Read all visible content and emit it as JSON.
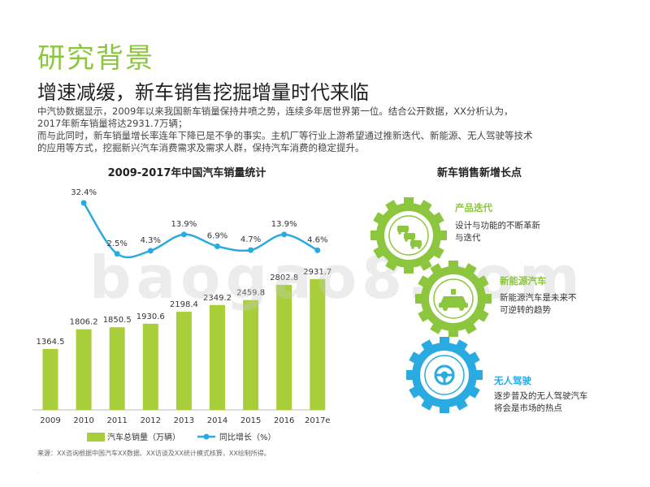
{
  "page": {
    "title": "研究背景",
    "subtitle": "增速减缓，新车销售挖掘增量时代来临",
    "intro_lines": [
      "中汽协数据显示，2009年以来我国新车销量保持井喷之势，连续多年居世界第一位。结合公开数据，XX分析认为，",
      "2017年新车销量将达2931.7万辆；",
      "而与此同时，新车销量增长率连年下降已是不争的事实。主机厂等行业上游希望通过推新迭代、新能源、无人驾驶等技术",
      "的应用等方式，挖掘新兴汽车消费需求及需求人群，保持汽车消费的稳定提升。"
    ],
    "source": "来源：XX咨询根据中国汽车XX数据、XX访谈及XX统计模式核算，XX绘制所得。",
    "watermark": "baogao8.com"
  },
  "colors": {
    "accent": "#8cc63f",
    "line": "#29abe2",
    "bar": "#a8cf3a"
  },
  "chart_data": {
    "type": "bar",
    "title": "2009-2017年中国汽车销量统计",
    "categories": [
      "2009",
      "2010",
      "2011",
      "2012",
      "2013",
      "2014",
      "2015",
      "2016",
      "2017e"
    ],
    "series": [
      {
        "name": "汽车总销量（万辆）",
        "type": "bar",
        "values": [
          1364.5,
          1806.2,
          1850.5,
          1930.6,
          2198.4,
          2349.2,
          2459.8,
          2802.8,
          2931.7
        ]
      },
      {
        "name": "同比增长（%）",
        "type": "line",
        "values": [
          null,
          32.4,
          2.5,
          4.3,
          13.9,
          6.9,
          4.7,
          13.9,
          4.6
        ]
      }
    ],
    "bar_labels": [
      "1364.5",
      "1806.2",
      "1850.5",
      "1930.6",
      "2198.4",
      "2349.2",
      "2459.8",
      "2802.8",
      "2931.7"
    ],
    "line_labels": [
      "",
      "32.4%",
      "2.5%",
      "4.3%",
      "13.9%",
      "6.9%",
      "4.7%",
      "13.9%",
      "4.6%"
    ],
    "legend_position": "bottom",
    "ylim_bar": [
      0,
      3200
    ],
    "ylim_line": [
      0,
      35
    ]
  },
  "growth": {
    "title": "新车销售新增长点",
    "items": [
      {
        "title": "产品迭代",
        "desc1": "设计与功能的不断革新",
        "desc2": "与迭代",
        "icon": "cars-icon"
      },
      {
        "title": "新能源汽车",
        "desc1": "新能源汽车是未来不",
        "desc2": "可逆转的趋势",
        "icon": "ev-car-icon"
      },
      {
        "title": "无人驾驶",
        "desc1": "逐步普及的无人驾驶汽车",
        "desc2": "将会是市场的热点",
        "icon": "steering-wheel-icon"
      }
    ]
  }
}
